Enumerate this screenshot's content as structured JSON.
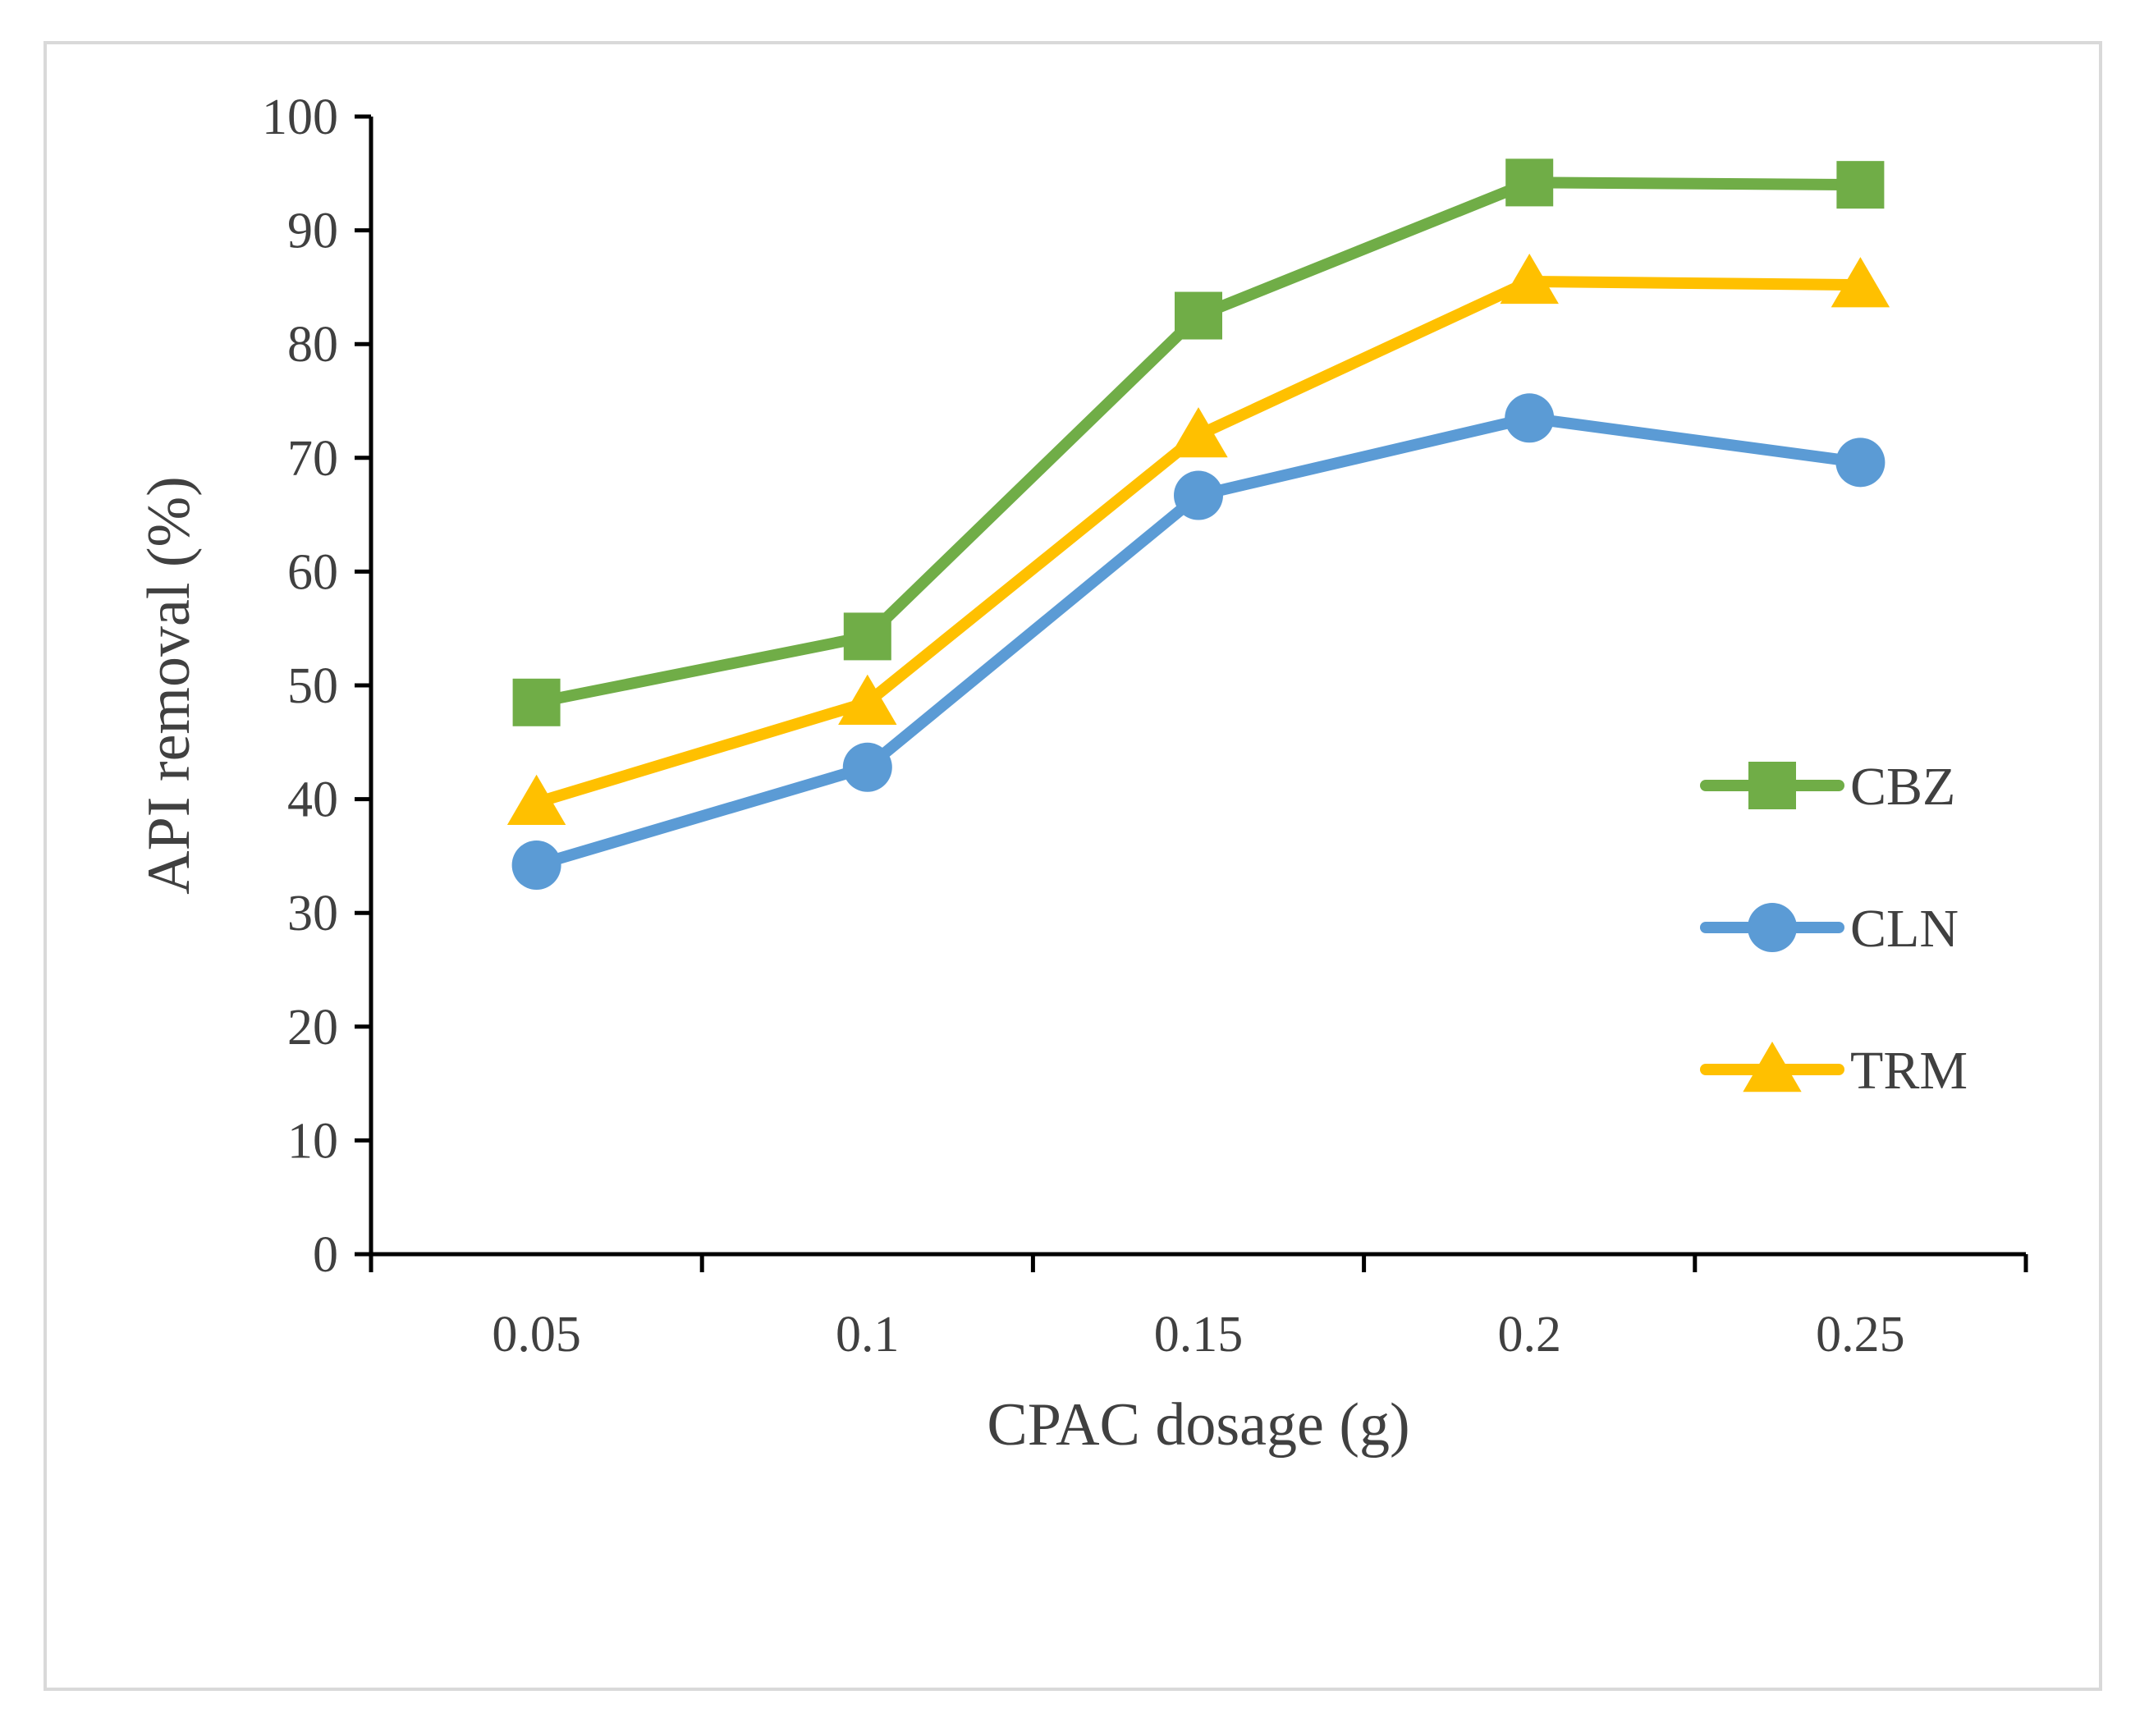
{
  "chart_data": {
    "type": "line",
    "title": "",
    "xlabel": "CPAC dosage (g)",
    "ylabel": "API removal (%)",
    "categories": [
      "0.05",
      "0.1",
      "0.15",
      "0.2",
      "0.25"
    ],
    "ylim": [
      0,
      100
    ],
    "yticks": [
      0,
      10,
      20,
      30,
      40,
      50,
      60,
      70,
      80,
      90,
      100
    ],
    "grid": false,
    "legend_position": "right",
    "series": [
      {
        "name": "CBZ",
        "marker": "square",
        "color": "#70ad47",
        "values": [
          48.5,
          54.3,
          82.5,
          94.2,
          94.0
        ]
      },
      {
        "name": "CLN",
        "marker": "circle",
        "color": "#5b9bd5",
        "values": [
          34.2,
          42.8,
          66.7,
          73.5,
          69.6
        ]
      },
      {
        "name": "TRM",
        "marker": "triangle",
        "color": "#ffc000",
        "values": [
          39.7,
          48.5,
          72.0,
          85.5,
          85.2
        ]
      }
    ]
  }
}
